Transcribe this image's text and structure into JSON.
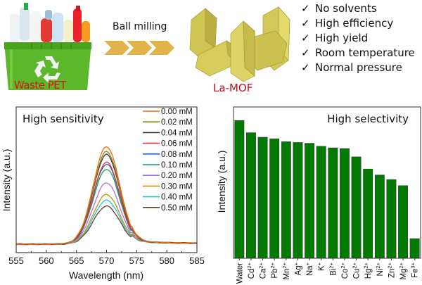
{
  "scheme": {
    "source_label": "Waste PET",
    "process_label": "Ball milling",
    "product_label": "La-MOF",
    "features": [
      {
        "icon": "check-icon",
        "label": "No solvents"
      },
      {
        "icon": "check-icon",
        "label": "High efficiency"
      },
      {
        "icon": "check-icon",
        "label": "High yield"
      },
      {
        "icon": "check-icon",
        "label": "Room temperature"
      },
      {
        "icon": "check-icon",
        "label": "Normal pressure"
      }
    ],
    "check_glyph": "✓",
    "colors": {
      "bin_green": "#5cb82a",
      "arrow_gold": "#e0b44a",
      "mof_yellow": "#d8cf5e",
      "label_red": "#d9141c"
    }
  },
  "chart_data": [
    {
      "type": "line",
      "title": "High sensitivity",
      "xlabel": "Wavelength (nm)",
      "ylabel": "Intensity (a.u.)",
      "xlim": [
        555,
        585
      ],
      "ylim": [
        0,
        1.1
      ],
      "xticks": [
        555,
        560,
        565,
        570,
        575,
        580,
        585
      ],
      "xtick_labels": [
        "555",
        "560",
        "565",
        "570",
        "575",
        "580",
        "585"
      ],
      "grid": false,
      "legend_position": "top-right",
      "peak_x": 570,
      "series": [
        {
          "name": "0.00 mM",
          "color": "#f26a10",
          "peak": 1.0
        },
        {
          "name": "0.02 mM",
          "color": "#8a8a1a",
          "peak": 0.95
        },
        {
          "name": "0.04 mM",
          "color": "#333333",
          "peak": 0.92
        },
        {
          "name": "0.06 mM",
          "color": "#e8323c",
          "peak": 0.84
        },
        {
          "name": "0.08 mM",
          "color": "#1e66d8",
          "peak": 0.82
        },
        {
          "name": "0.10 mM",
          "color": "#1e9a5a",
          "peak": 0.77
        },
        {
          "name": "0.20 mM",
          "color": "#b070e0",
          "peak": 0.63
        },
        {
          "name": "0.30 mM",
          "color": "#c8900c",
          "peak": 0.51
        },
        {
          "name": "0.40 mM",
          "color": "#1ec8d0",
          "peak": 0.45
        },
        {
          "name": "0.50 mM",
          "color": "#6e3a2e",
          "peak": 0.39
        }
      ]
    },
    {
      "type": "bar",
      "title": "High selectivity",
      "xlabel": "",
      "ylabel": "Intensity (a.u.)",
      "ylim": [
        0,
        1.0
      ],
      "grid": false,
      "bar_color": "#007a00",
      "categories": [
        {
          "base": "Water",
          "sup": ""
        },
        {
          "base": "Cd",
          "sup": "2+"
        },
        {
          "base": "Ca",
          "sup": "2+"
        },
        {
          "base": "Pb",
          "sup": "2+"
        },
        {
          "base": "Mn",
          "sup": "2+"
        },
        {
          "base": "Ag",
          "sup": "+"
        },
        {
          "base": "Na",
          "sup": "+"
        },
        {
          "base": "K",
          "sup": "+"
        },
        {
          "base": "Bi",
          "sup": "2+"
        },
        {
          "base": "Co",
          "sup": "2+"
        },
        {
          "base": "Cu",
          "sup": "2+"
        },
        {
          "base": "Hg",
          "sup": "2+"
        },
        {
          "base": "Ni",
          "sup": "2+"
        },
        {
          "base": "Zn",
          "sup": "2+"
        },
        {
          "base": "Mg",
          "sup": "2+"
        },
        {
          "base": "Fe",
          "sup": "3+"
        }
      ],
      "values": [
        0.91,
        0.83,
        0.8,
        0.79,
        0.77,
        0.765,
        0.76,
        0.74,
        0.73,
        0.725,
        0.67,
        0.59,
        0.55,
        0.52,
        0.48,
        0.13
      ]
    }
  ]
}
